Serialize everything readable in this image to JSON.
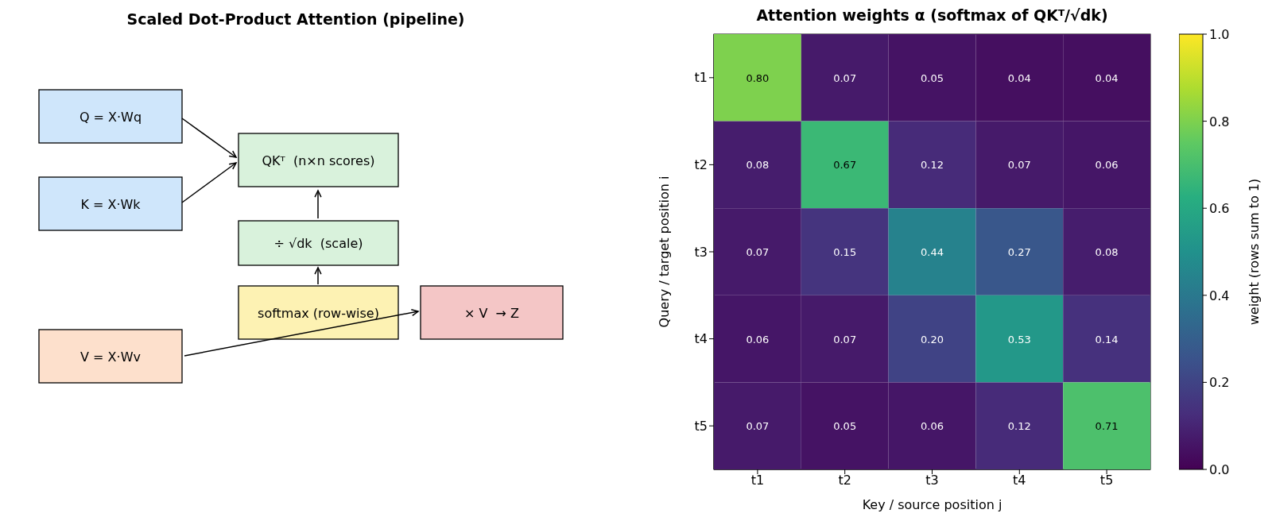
{
  "chart_data": [
    {
      "type": "other",
      "title": "Scaled Dot-Product Attention (pipeline)",
      "annotations": [
        "Q = X·Wq",
        "K = X·Wk",
        "V = X·Wv",
        "QKᵀ  (n×n scores)",
        "÷ √dk  (scale)",
        "softmax (row-wise)",
        "× V  → Z"
      ],
      "colors": [
        "#cfe6fb",
        "#cfe6fb",
        "#fde0cc",
        "#d9f2dc",
        "#d9f2dc",
        "#fdf2b3",
        "#f4c6c6"
      ]
    },
    {
      "type": "heatmap",
      "title": "Attention weights α (softmax of QKᵀ/√dk)",
      "xlabel": "Key / source position j",
      "ylabel": "Query / target position i",
      "clabel": "weight (rows sum to 1)",
      "categories": [
        "t1",
        "t2",
        "t3",
        "t4",
        "t5"
      ],
      "y_categories": [
        "t1",
        "t2",
        "t3",
        "t4",
        "t5"
      ],
      "cells": [
        [
          0.8,
          0.07,
          0.05,
          0.04,
          0.04
        ],
        [
          0.08,
          0.67,
          0.12,
          0.07,
          0.06
        ],
        [
          0.07,
          0.15,
          0.44,
          0.27,
          0.08
        ],
        [
          0.06,
          0.07,
          0.2,
          0.53,
          0.14
        ],
        [
          0.07,
          0.05,
          0.06,
          0.12,
          0.71
        ]
      ],
      "cell_labels": [
        [
          "0.80",
          "0.07",
          "0.05",
          "0.04",
          "0.04"
        ],
        [
          "0.08",
          "0.67",
          "0.12",
          "0.07",
          "0.06"
        ],
        [
          "0.07",
          "0.15",
          "0.44",
          "0.27",
          "0.08"
        ],
        [
          "0.06",
          "0.07",
          "0.20",
          "0.53",
          "0.14"
        ],
        [
          "0.07",
          "0.05",
          "0.06",
          "0.12",
          "0.71"
        ]
      ],
      "clim": [
        0,
        1
      ],
      "cticks": [
        {
          "value": 0,
          "label": "0.0"
        },
        {
          "value": 0.2,
          "label": "0.2"
        },
        {
          "value": 0.4,
          "label": "0.4"
        },
        {
          "value": 0.6,
          "label": "0.6"
        },
        {
          "value": 0.8,
          "label": "0.8"
        },
        {
          "value": 1,
          "label": "1.0"
        }
      ]
    }
  ]
}
